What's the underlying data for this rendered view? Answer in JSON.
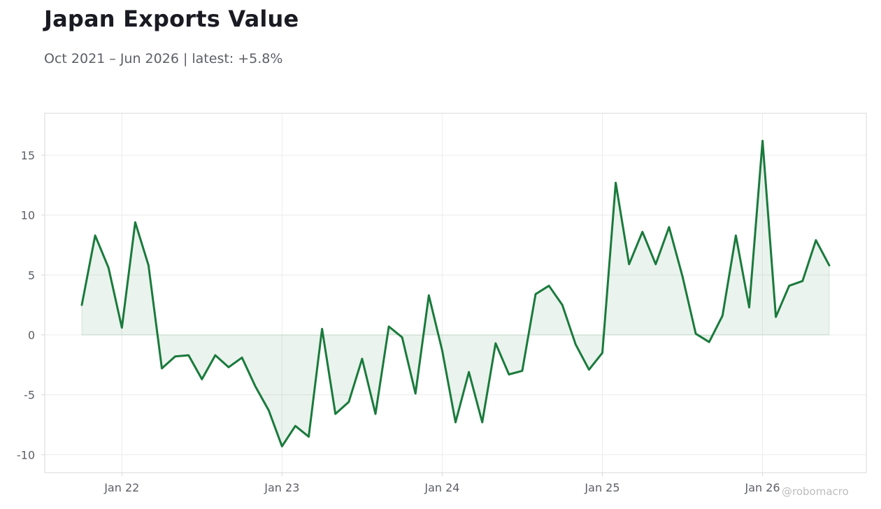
{
  "title": "Japan Exports Value",
  "subtitle": "Oct 2021 – Jun 2026 | latest: +5.8%",
  "watermark": "@robomacro",
  "colors": {
    "line": "#1a7a3c",
    "fill": "#1a7a3c",
    "grid": "#ececec",
    "axis": "#d9d9d9",
    "tick_text": "#5c5f66"
  },
  "chart_data": {
    "type": "area",
    "title": "Japan Exports Value",
    "subtitle": "Oct 2021 – Jun 2026 | latest: +5.8%",
    "xlabel": "",
    "ylabel": "",
    "ylim": [
      -11.5,
      18.5
    ],
    "grid": true,
    "x_ticks": [
      {
        "label": "Jan 22",
        "date": "2022-01"
      },
      {
        "label": "Jan 23",
        "date": "2023-01"
      },
      {
        "label": "Jan 24",
        "date": "2024-01"
      },
      {
        "label": "Jan 25",
        "date": "2025-01"
      },
      {
        "label": "Jan 26",
        "date": "2026-01"
      }
    ],
    "y_ticks": [
      -10,
      -5,
      0,
      5,
      10,
      15
    ],
    "series": [
      {
        "x": [
          "2021-10",
          "2021-11",
          "2021-12",
          "2022-01",
          "2022-02",
          "2022-03",
          "2022-04",
          "2022-05",
          "2022-06",
          "2022-07",
          "2022-08",
          "2022-09",
          "2022-10",
          "2022-11",
          "2022-12",
          "2023-01",
          "2023-02",
          "2023-03",
          "2023-04",
          "2023-05",
          "2023-06",
          "2023-07",
          "2023-08",
          "2023-09",
          "2023-10",
          "2023-11",
          "2023-12",
          "2024-01",
          "2024-02",
          "2024-03",
          "2024-04",
          "2024-05",
          "2024-06",
          "2024-07",
          "2024-08",
          "2024-09",
          "2024-10",
          "2024-11",
          "2024-12",
          "2025-01",
          "2025-02",
          "2025-03",
          "2025-04",
          "2025-05",
          "2025-06",
          "2025-07",
          "2025-08",
          "2025-09",
          "2025-10",
          "2025-11",
          "2025-12",
          "2026-01",
          "2026-02",
          "2026-03",
          "2026-04",
          "2026-05",
          "2026-06"
        ],
        "values": [
          2.5,
          8.3,
          5.6,
          0.6,
          9.4,
          5.8,
          -2.8,
          -1.8,
          -1.7,
          -3.7,
          -1.7,
          -2.7,
          -1.9,
          -4.3,
          -6.3,
          -9.3,
          -7.6,
          -8.5,
          0.5,
          -6.6,
          -5.6,
          -2.0,
          -6.6,
          0.7,
          -0.2,
          -4.9,
          3.3,
          -1.3,
          -7.3,
          -3.1,
          -7.3,
          -0.7,
          -3.3,
          -3.0,
          3.4,
          4.1,
          2.5,
          -0.8,
          -2.9,
          -1.5,
          12.7,
          5.9,
          8.6,
          5.9,
          9.0,
          4.9,
          0.1,
          -0.6,
          1.6,
          8.3,
          2.3,
          16.2,
          1.5,
          4.1,
          4.5,
          7.9,
          5.8
        ]
      }
    ]
  }
}
